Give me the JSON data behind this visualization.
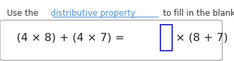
{
  "title_plain1": "Use the ",
  "title_link": "distributive property",
  "title_plain2": " to fill in the blanks below.",
  "equation_text": "(4 × 8) + (4 × 7) = ",
  "equation_after": " × (8 + 7)",
  "bg_color": "#ffffff",
  "box_bg": "#ffffff",
  "box_edge": "#aaaaaa",
  "title_color": "#333333",
  "link_color": "#4a90d9",
  "eq_color": "#222222",
  "blank_border_color": "#3333cc",
  "title_fontsize": 8.5,
  "eq_fontsize": 11.5,
  "fig_width": 3.37,
  "fig_height": 0.89
}
